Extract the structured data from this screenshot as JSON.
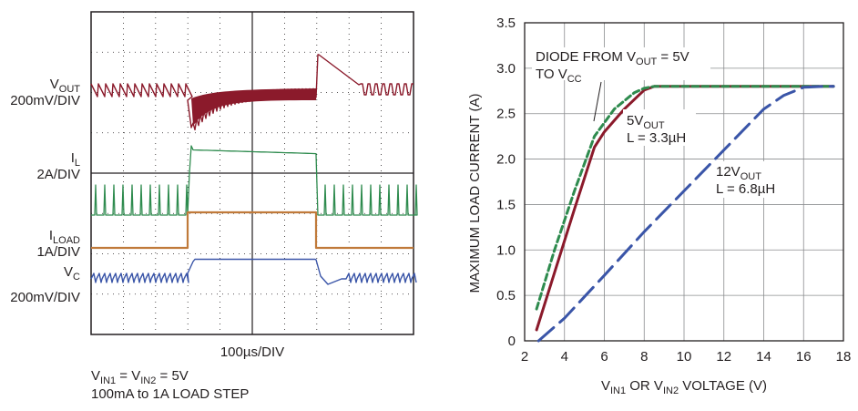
{
  "scope": {
    "traces": [
      {
        "name": "V<sub>OUT</sub>",
        "scale": "200mV/DIV",
        "color": "#8b1a2b"
      },
      {
        "name": "I<sub>L</sub>",
        "scale": "2A/DIV",
        "color": "#2e8b4e"
      },
      {
        "name": "I<sub>LOAD</sub>",
        "scale": "1A/DIV",
        "color": "#c07a3a"
      },
      {
        "name": "V<sub>C</sub>",
        "scale": "200mV/DIV",
        "color": "#3a55a8"
      }
    ],
    "time_scale": "100µs/DIV",
    "caption": [
      "V<sub>IN1</sub> = V<sub>IN2</sub> = 5V",
      "100mA to 1A LOAD STEP"
    ]
  },
  "chart_data": {
    "type": "line",
    "xlabel": "V<sub>IN1</sub> OR V<sub>IN2</sub> VOLTAGE (V)",
    "ylabel": "MAXIMUM LOAD CURRENT (A)",
    "xlim": [
      2,
      18
    ],
    "ylim": [
      0,
      3.5
    ],
    "xticks": [
      2,
      4,
      6,
      8,
      10,
      12,
      14,
      16,
      18
    ],
    "yticks": [
      0,
      0.5,
      1.0,
      1.5,
      2.0,
      2.5,
      3.0,
      3.5
    ],
    "ytick_labels": [
      "0",
      "0.5",
      "1.0",
      "1.5",
      "2.0",
      "2.5",
      "3.0",
      "3.5"
    ],
    "grid": true,
    "series": [
      {
        "name": "5V<sub>OUT</sub> L = 3.3µH",
        "color": "#8b1a2b",
        "dash": "solid",
        "x": [
          2.6,
          3.5,
          4.5,
          5.5,
          6.0,
          7.0,
          8.0,
          8.5,
          9.0,
          10,
          12,
          14,
          16,
          17.5
        ],
        "y": [
          0.12,
          0.75,
          1.45,
          2.13,
          2.3,
          2.55,
          2.76,
          2.8,
          2.8,
          2.8,
          2.8,
          2.8,
          2.8,
          2.8
        ]
      },
      {
        "name": "DIODE FROM V<sub>OUT</sub> = 5V TO V<sub>CC</sub>",
        "color": "#2e8b4e",
        "dash": "dashed",
        "x": [
          2.6,
          3.5,
          4.5,
          5.5,
          6.5,
          7.5,
          8.0,
          8.5,
          9.0,
          12,
          17.5
        ],
        "y": [
          0.35,
          1.0,
          1.65,
          2.25,
          2.55,
          2.73,
          2.78,
          2.8,
          2.8,
          2.8,
          2.8
        ]
      },
      {
        "name": "12V<sub>OUT</sub> L = 6.8µH",
        "color": "#3a55a8",
        "dash": "long-dash",
        "x": [
          2.7,
          4.0,
          6.0,
          8.0,
          10.0,
          12.0,
          14.0,
          15.0,
          16.0,
          17.0,
          17.5
        ],
        "y": [
          0.0,
          0.25,
          0.72,
          1.2,
          1.65,
          2.1,
          2.55,
          2.7,
          2.79,
          2.8,
          2.8
        ]
      }
    ],
    "annotations": [
      {
        "lines": [
          "DIODE FROM V<sub>OUT</sub> = 5V",
          "TO V<sub>CC</sub>"
        ]
      },
      {
        "lines": [
          "5V<sub>OUT</sub>",
          "L = 3.3µH"
        ]
      },
      {
        "lines": [
          "12V<sub>OUT</sub>",
          "L = 6.8µH"
        ]
      }
    ]
  }
}
